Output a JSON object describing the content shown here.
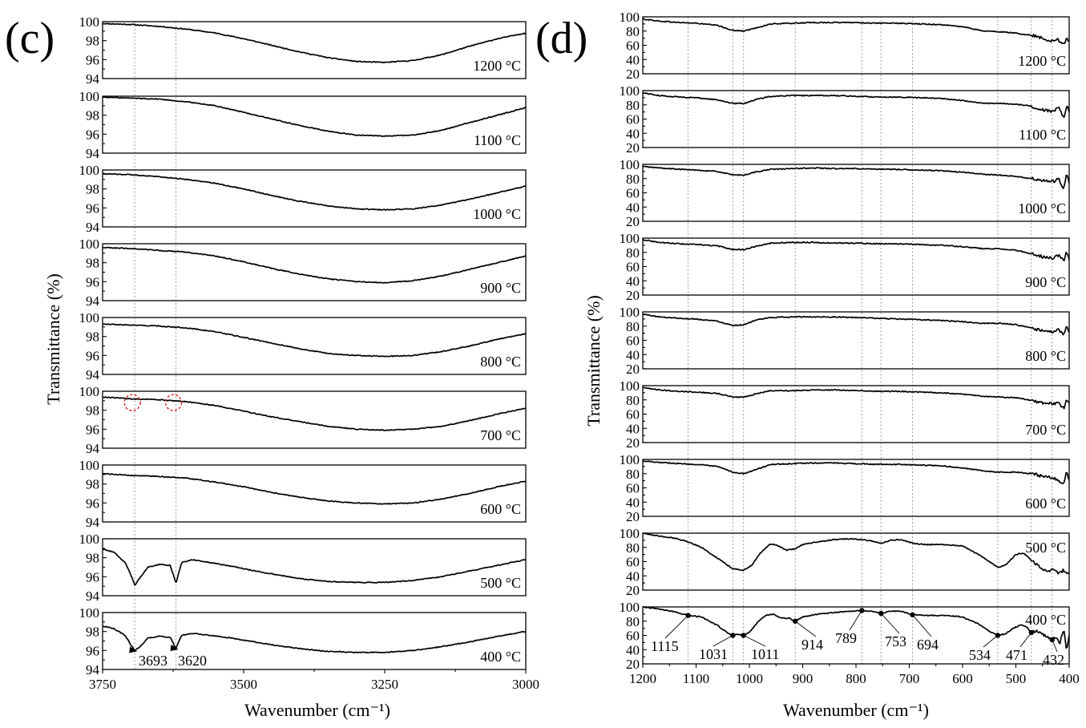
{
  "chart_data": [
    {
      "type": "line",
      "panel_label": "(c)",
      "xlabel": "Wavenumber (cm⁻¹)",
      "ylabel": "Transmittance (%)",
      "xlim": [
        3750,
        3000
      ],
      "x_reversed": true,
      "x_ticks": [
        3750,
        3500,
        3250,
        3000
      ],
      "ylim": [
        94,
        100
      ],
      "y_ticks": [
        94,
        96,
        98,
        100
      ],
      "reference_lines_x": [
        3693,
        3620
      ],
      "series": [
        {
          "name": "1200 °C",
          "x": [
            3750,
            3700,
            3650,
            3600,
            3550,
            3500,
            3450,
            3400,
            3350,
            3300,
            3250,
            3200,
            3150,
            3100,
            3050,
            3000
          ],
          "y": [
            99.8,
            99.7,
            99.5,
            99.2,
            98.8,
            98.2,
            97.5,
            96.8,
            96.2,
            95.8,
            95.7,
            95.9,
            96.5,
            97.4,
            98.2,
            98.8
          ]
        },
        {
          "name": "1100 °C",
          "x": [
            3750,
            3700,
            3650,
            3600,
            3550,
            3500,
            3450,
            3400,
            3350,
            3300,
            3250,
            3200,
            3150,
            3100,
            3050,
            3000
          ],
          "y": [
            99.9,
            99.8,
            99.7,
            99.4,
            99.0,
            98.3,
            97.6,
            96.9,
            96.3,
            95.9,
            95.8,
            95.9,
            96.4,
            97.2,
            98.0,
            98.8
          ]
        },
        {
          "name": "1000 °C",
          "x": [
            3750,
            3700,
            3650,
            3600,
            3550,
            3500,
            3450,
            3400,
            3350,
            3300,
            3250,
            3200,
            3150,
            3100,
            3050,
            3000
          ],
          "y": [
            99.6,
            99.5,
            99.3,
            99.0,
            98.6,
            98.0,
            97.3,
            96.7,
            96.2,
            95.9,
            95.8,
            95.9,
            96.3,
            96.9,
            97.6,
            98.3
          ]
        },
        {
          "name": "900 °C",
          "x": [
            3750,
            3700,
            3650,
            3600,
            3550,
            3500,
            3450,
            3400,
            3350,
            3300,
            3250,
            3200,
            3150,
            3100,
            3050,
            3000
          ],
          "y": [
            99.6,
            99.5,
            99.3,
            99.1,
            98.7,
            98.1,
            97.4,
            96.8,
            96.3,
            96.0,
            95.9,
            96.1,
            96.6,
            97.3,
            98.0,
            98.7
          ]
        },
        {
          "name": "800 °C",
          "x": [
            3750,
            3700,
            3650,
            3600,
            3550,
            3500,
            3450,
            3400,
            3350,
            3300,
            3250,
            3200,
            3150,
            3100,
            3050,
            3000
          ],
          "y": [
            99.3,
            99.2,
            99.1,
            98.9,
            98.5,
            97.9,
            97.3,
            96.7,
            96.2,
            96.0,
            95.9,
            96.0,
            96.4,
            97.0,
            97.7,
            98.3
          ]
        },
        {
          "name": "700 °C",
          "x": [
            3750,
            3700,
            3650,
            3600,
            3550,
            3500,
            3450,
            3400,
            3350,
            3300,
            3250,
            3200,
            3150,
            3100,
            3050,
            3000
          ],
          "y": [
            99.4,
            99.2,
            99.1,
            98.9,
            98.5,
            97.9,
            97.3,
            96.8,
            96.3,
            96.0,
            95.9,
            96.0,
            96.3,
            96.9,
            97.6,
            98.2
          ]
        },
        {
          "name": "600 °C",
          "x": [
            3750,
            3700,
            3650,
            3600,
            3550,
            3500,
            3450,
            3400,
            3350,
            3300,
            3250,
            3200,
            3150,
            3100,
            3050,
            3000
          ],
          "y": [
            99.1,
            98.9,
            98.8,
            98.6,
            98.2,
            97.7,
            97.1,
            96.6,
            96.2,
            96.0,
            95.9,
            96.0,
            96.4,
            97.0,
            97.7,
            98.3
          ]
        },
        {
          "name": "500 °C",
          "x": [
            3750,
            3730,
            3710,
            3700,
            3693,
            3685,
            3670,
            3650,
            3630,
            3620,
            3610,
            3590,
            3560,
            3520,
            3480,
            3440,
            3400,
            3350,
            3300,
            3250,
            3200,
            3150,
            3100,
            3050,
            3000
          ],
          "y": [
            98.9,
            98.6,
            97.5,
            96.2,
            95.1,
            95.8,
            97.0,
            97.3,
            97.2,
            95.3,
            97.5,
            97.8,
            97.5,
            97.1,
            96.6,
            96.2,
            95.8,
            95.5,
            95.4,
            95.4,
            95.6,
            96.0,
            96.6,
            97.2,
            97.8
          ]
        },
        {
          "name": "400 °C",
          "x": [
            3750,
            3730,
            3710,
            3700,
            3693,
            3685,
            3670,
            3650,
            3630,
            3620,
            3610,
            3590,
            3560,
            3520,
            3480,
            3440,
            3400,
            3350,
            3300,
            3250,
            3200,
            3150,
            3100,
            3050,
            3000
          ],
          "y": [
            98.6,
            98.3,
            97.6,
            96.6,
            96.0,
            96.3,
            97.3,
            97.5,
            97.4,
            96.2,
            97.6,
            97.8,
            97.6,
            97.3,
            96.9,
            96.5,
            96.2,
            95.9,
            95.8,
            95.8,
            96.0,
            96.4,
            96.9,
            97.5,
            98.0
          ]
        }
      ],
      "annotations": [
        {
          "text": "3693",
          "x": 3693,
          "y": 96.0
        },
        {
          "text": "3620",
          "x": 3620,
          "y": 96.2
        }
      ]
    },
    {
      "type": "line",
      "panel_label": "(d)",
      "xlabel": "Wavenumber (cm⁻¹)",
      "ylabel": "Transmittance (%)",
      "xlim": [
        1200,
        400
      ],
      "x_reversed": true,
      "x_ticks": [
        1200,
        1100,
        1000,
        900,
        800,
        700,
        600,
        500,
        400
      ],
      "ylim": [
        20,
        100
      ],
      "y_ticks": [
        20,
        40,
        60,
        80,
        100
      ],
      "reference_lines_x": [
        1115,
        1031,
        1011,
        914,
        789,
        753,
        694,
        534,
        471,
        432
      ],
      "series": [
        {
          "name": "1200 °C",
          "x": [
            1200,
            1170,
            1130,
            1100,
            1060,
            1031,
            1010,
            990,
            960,
            920,
            880,
            840,
            800,
            760,
            720,
            680,
            640,
            600,
            560,
            530,
            500,
            470,
            450,
            430,
            420,
            410,
            405,
            400
          ],
          "y": [
            97,
            94,
            92,
            91,
            88,
            81,
            80,
            84,
            90,
            91,
            92,
            92,
            92,
            91,
            91,
            90,
            89,
            86,
            80,
            79,
            77,
            74,
            70,
            66,
            68,
            60,
            72,
            65
          ]
        },
        {
          "name": "1100 °C",
          "x": [
            1200,
            1170,
            1130,
            1100,
            1060,
            1031,
            1010,
            990,
            960,
            920,
            880,
            840,
            800,
            760,
            720,
            680,
            640,
            600,
            560,
            530,
            500,
            470,
            450,
            430,
            420,
            410,
            405,
            400
          ],
          "y": [
            97,
            93,
            91,
            90,
            87,
            82,
            82,
            87,
            92,
            93,
            93,
            93,
            92,
            91,
            91,
            90,
            89,
            86,
            82,
            82,
            81,
            78,
            73,
            70,
            76,
            62,
            78,
            70
          ]
        },
        {
          "name": "1000 °C",
          "x": [
            1200,
            1170,
            1130,
            1100,
            1060,
            1031,
            1010,
            990,
            960,
            920,
            880,
            840,
            800,
            760,
            720,
            680,
            640,
            600,
            560,
            530,
            500,
            470,
            450,
            430,
            420,
            410,
            405,
            400
          ],
          "y": [
            97,
            95,
            93,
            92,
            90,
            85,
            85,
            89,
            93,
            94,
            95,
            94,
            94,
            93,
            93,
            92,
            91,
            89,
            86,
            85,
            83,
            80,
            77,
            76,
            80,
            66,
            88,
            72
          ]
        },
        {
          "name": "900 °C",
          "x": [
            1200,
            1170,
            1130,
            1100,
            1060,
            1031,
            1010,
            990,
            960,
            920,
            880,
            840,
            800,
            760,
            720,
            680,
            640,
            600,
            560,
            530,
            500,
            470,
            450,
            430,
            420,
            410,
            405,
            400
          ],
          "y": [
            98,
            94,
            92,
            91,
            89,
            84,
            84,
            88,
            93,
            94,
            94,
            93,
            93,
            92,
            92,
            91,
            90,
            88,
            85,
            85,
            83,
            78,
            74,
            72,
            76,
            68,
            82,
            70
          ]
        },
        {
          "name": "800 °C",
          "x": [
            1200,
            1170,
            1130,
            1100,
            1060,
            1031,
            1010,
            990,
            960,
            920,
            880,
            840,
            800,
            760,
            720,
            680,
            640,
            600,
            560,
            530,
            500,
            470,
            450,
            430,
            420,
            410,
            405,
            400
          ],
          "y": [
            97,
            93,
            91,
            90,
            87,
            81,
            82,
            88,
            92,
            93,
            93,
            93,
            92,
            91,
            90,
            89,
            88,
            86,
            84,
            84,
            82,
            77,
            73,
            72,
            75,
            68,
            80,
            70
          ]
        },
        {
          "name": "700 °C",
          "x": [
            1200,
            1170,
            1130,
            1100,
            1060,
            1031,
            1010,
            990,
            960,
            920,
            880,
            840,
            800,
            760,
            720,
            680,
            640,
            600,
            560,
            530,
            500,
            470,
            450,
            430,
            420,
            410,
            405,
            400
          ],
          "y": [
            97,
            94,
            92,
            91,
            89,
            84,
            84,
            88,
            93,
            93,
            94,
            94,
            93,
            92,
            92,
            91,
            90,
            88,
            85,
            84,
            83,
            79,
            76,
            74,
            76,
            68,
            80,
            76
          ]
        },
        {
          "name": "600 °C",
          "x": [
            1200,
            1170,
            1130,
            1100,
            1060,
            1031,
            1010,
            990,
            960,
            920,
            880,
            840,
            800,
            760,
            720,
            680,
            640,
            600,
            560,
            530,
            500,
            470,
            450,
            430,
            420,
            410,
            405,
            400
          ],
          "y": [
            98,
            96,
            94,
            93,
            90,
            82,
            80,
            85,
            93,
            94,
            95,
            95,
            94,
            93,
            93,
            92,
            91,
            88,
            84,
            82,
            82,
            80,
            76,
            74,
            70,
            66,
            82,
            70
          ]
        },
        {
          "name": "500 °C",
          "x": [
            1200,
            1170,
            1140,
            1115,
            1090,
            1060,
            1031,
            1011,
            995,
            980,
            960,
            945,
            930,
            914,
            900,
            870,
            840,
            810,
            789,
            770,
            753,
            735,
            715,
            694,
            670,
            630,
            600,
            570,
            550,
            534,
            520,
            500,
            485,
            471,
            455,
            440,
            432,
            420,
            410,
            405,
            400
          ],
          "y": [
            100,
            96,
            93,
            88,
            80,
            65,
            50,
            48,
            55,
            72,
            85,
            82,
            76,
            78,
            84,
            88,
            91,
            92,
            91,
            89,
            86,
            90,
            91,
            86,
            84,
            84,
            82,
            70,
            60,
            52,
            55,
            70,
            72,
            62,
            52,
            46,
            50,
            44,
            48,
            42,
            46
          ]
        },
        {
          "name": "400 °C",
          "x": [
            1200,
            1170,
            1140,
            1115,
            1090,
            1060,
            1040,
            1031,
            1020,
            1011,
            1000,
            985,
            970,
            955,
            940,
            925,
            914,
            900,
            870,
            840,
            810,
            789,
            770,
            753,
            735,
            715,
            694,
            670,
            630,
            600,
            570,
            550,
            534,
            520,
            505,
            490,
            480,
            471,
            460,
            445,
            432,
            425,
            418,
            410,
            405,
            400
          ],
          "y": [
            100,
            97,
            93,
            88,
            86,
            74,
            63,
            60,
            62,
            60,
            64,
            78,
            88,
            90,
            84,
            84,
            80,
            86,
            90,
            92,
            94,
            95,
            94,
            91,
            94,
            94,
            89,
            88,
            88,
            86,
            76,
            66,
            60,
            62,
            70,
            75,
            72,
            64,
            66,
            60,
            54,
            58,
            48,
            68,
            40,
            60
          ]
        }
      ],
      "annotations": [
        {
          "text": "1115",
          "x": 1115
        },
        {
          "text": "1031",
          "x": 1031
        },
        {
          "text": "1011",
          "x": 1011
        },
        {
          "text": "914",
          "x": 914
        },
        {
          "text": "789",
          "x": 789
        },
        {
          "text": "753",
          "x": 753
        },
        {
          "text": "694",
          "x": 694
        },
        {
          "text": "534",
          "x": 534
        },
        {
          "text": "471",
          "x": 471
        },
        {
          "text": "432",
          "x": 432
        }
      ]
    }
  ]
}
